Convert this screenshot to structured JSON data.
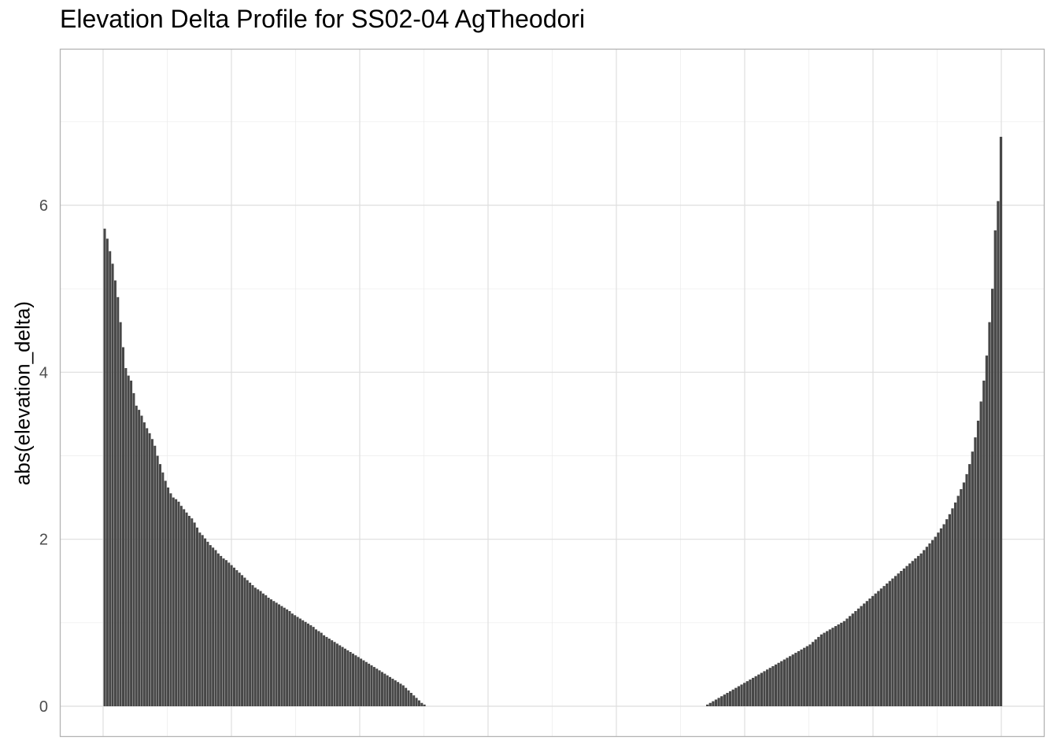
{
  "chart_data": {
    "type": "bar",
    "title": "Elevation Delta Profile for SS02-04 AgTheodori",
    "xlabel": "",
    "ylabel": "abs(elevation_delta)",
    "ylim": [
      -0.36,
      7.9
    ],
    "y_ticks": [
      "0",
      "2",
      "4",
      "6"
    ],
    "y_tick_values": [
      0,
      2,
      4,
      6
    ],
    "x_tick_labels": [],
    "grid": true,
    "bar_color": "#474747",
    "series": [
      {
        "name": "",
        "description_note": "",
        "left_group": [
          5.72,
          5.6,
          5.45,
          5.3,
          5.1,
          4.9,
          4.6,
          4.3,
          4.05,
          3.96,
          3.9,
          3.75,
          3.6,
          3.55,
          3.48,
          3.4,
          3.33,
          3.27,
          3.2,
          3.12,
          3.0,
          2.9,
          2.8,
          2.7,
          2.62,
          2.55,
          2.5,
          2.48,
          2.45,
          2.4,
          2.36,
          2.32,
          2.28,
          2.25,
          2.2,
          2.14,
          2.08,
          2.05,
          2.01,
          1.97,
          1.93,
          1.9,
          1.87,
          1.83,
          1.8,
          1.77,
          1.75,
          1.72,
          1.69,
          1.66,
          1.63,
          1.6,
          1.57,
          1.54,
          1.51,
          1.48,
          1.45,
          1.42,
          1.4,
          1.38,
          1.35,
          1.33,
          1.3,
          1.28,
          1.26,
          1.24,
          1.22,
          1.2,
          1.18,
          1.16,
          1.14,
          1.11,
          1.09,
          1.07,
          1.05,
          1.03,
          1.01,
          0.99,
          0.97,
          0.95,
          0.92,
          0.9,
          0.88,
          0.85,
          0.83,
          0.81,
          0.79,
          0.77,
          0.75,
          0.73,
          0.71,
          0.69,
          0.67,
          0.65,
          0.63,
          0.61,
          0.59,
          0.57,
          0.55,
          0.53,
          0.51,
          0.49,
          0.47,
          0.45,
          0.43,
          0.41,
          0.39,
          0.37,
          0.35,
          0.33,
          0.31,
          0.29,
          0.27,
          0.25,
          0.22,
          0.19,
          0.16,
          0.13,
          0.1,
          0.07,
          0.04,
          0.02
        ],
        "right_group": [
          0.02,
          0.04,
          0.06,
          0.08,
          0.1,
          0.12,
          0.14,
          0.16,
          0.18,
          0.2,
          0.22,
          0.24,
          0.26,
          0.28,
          0.3,
          0.32,
          0.34,
          0.36,
          0.38,
          0.4,
          0.42,
          0.44,
          0.46,
          0.48,
          0.5,
          0.52,
          0.54,
          0.56,
          0.58,
          0.6,
          0.62,
          0.64,
          0.66,
          0.68,
          0.7,
          0.72,
          0.74,
          0.77,
          0.8,
          0.83,
          0.86,
          0.88,
          0.9,
          0.92,
          0.94,
          0.96,
          0.98,
          1.0,
          1.02,
          1.05,
          1.08,
          1.11,
          1.14,
          1.17,
          1.2,
          1.23,
          1.26,
          1.29,
          1.32,
          1.35,
          1.38,
          1.41,
          1.44,
          1.47,
          1.5,
          1.53,
          1.56,
          1.59,
          1.62,
          1.65,
          1.68,
          1.71,
          1.74,
          1.77,
          1.8,
          1.83,
          1.87,
          1.91,
          1.95,
          1.99,
          2.03,
          2.08,
          2.13,
          2.18,
          2.24,
          2.3,
          2.37,
          2.44,
          2.52,
          2.6,
          2.68,
          2.78,
          2.9,
          3.05,
          3.22,
          3.42,
          3.65,
          3.9,
          4.2,
          4.6,
          5.0,
          5.7,
          6.05,
          6.82
        ]
      }
    ]
  }
}
